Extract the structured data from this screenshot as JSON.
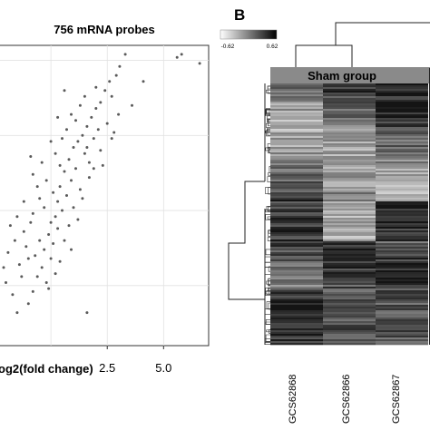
{
  "panel_a": {
    "title": "756 mRNA probes",
    "xlabel": "og2(fold change)",
    "chart_data": {
      "type": "scatter",
      "title": "756 mRNA probes",
      "xlabel": "og2(fold change)",
      "ylabel": "",
      "x_ticks": [
        "2.5",
        "5.0"
      ],
      "xlim": [
        -2.3,
        7.0
      ],
      "ylim": [
        -2.0,
        8.0
      ],
      "grid": true,
      "point_color": "#5a5a5a",
      "points": [
        {
          "x": 5.6,
          "y": 7.6
        },
        {
          "x": 5.8,
          "y": 7.7
        },
        {
          "x": 6.6,
          "y": 7.4
        },
        {
          "x": 3.3,
          "y": 7.7
        },
        {
          "x": 3.05,
          "y": 7.3
        },
        {
          "x": 4.1,
          "y": 6.8
        },
        {
          "x": 2.9,
          "y": 7.0
        },
        {
          "x": 2.6,
          "y": 6.8
        },
        {
          "x": 2.7,
          "y": 6.3
        },
        {
          "x": 2.4,
          "y": 6.5
        },
        {
          "x": 2.2,
          "y": 6.1
        },
        {
          "x": 2.0,
          "y": 5.9
        },
        {
          "x": 1.8,
          "y": 5.6
        },
        {
          "x": 2.1,
          "y": 5.2
        },
        {
          "x": 1.6,
          "y": 5.3
        },
        {
          "x": 1.4,
          "y": 5.0
        },
        {
          "x": 1.2,
          "y": 4.8
        },
        {
          "x": 1.5,
          "y": 4.4
        },
        {
          "x": 1.0,
          "y": 4.6
        },
        {
          "x": 0.8,
          "y": 4.2
        },
        {
          "x": 1.1,
          "y": 3.9
        },
        {
          "x": 0.6,
          "y": 3.8
        },
        {
          "x": 0.9,
          "y": 3.5
        },
        {
          "x": 0.4,
          "y": 3.3
        },
        {
          "x": 0.7,
          "y": 3.0
        },
        {
          "x": 0.3,
          "y": 2.8
        },
        {
          "x": 0.5,
          "y": 2.5
        },
        {
          "x": 0.2,
          "y": 2.3
        },
        {
          "x": 0.0,
          "y": 2.1
        },
        {
          "x": 0.3,
          "y": 1.9
        },
        {
          "x": -0.1,
          "y": 1.7
        },
        {
          "x": 0.1,
          "y": 1.4
        },
        {
          "x": -0.3,
          "y": 1.2
        },
        {
          "x": 0.0,
          "y": 0.9
        },
        {
          "x": -0.4,
          "y": 0.6
        },
        {
          "x": -0.6,
          "y": 0.3
        },
        {
          "x": -0.2,
          "y": 0.1
        },
        {
          "x": -0.8,
          "y": -0.2
        },
        {
          "x": 1.6,
          "y": -0.9
        },
        {
          "x": -1.0,
          "y": -0.6
        },
        {
          "x": -1.5,
          "y": -0.9
        },
        {
          "x": 0.6,
          "y": 6.5
        },
        {
          "x": 1.3,
          "y": 6.0
        },
        {
          "x": 0.9,
          "y": 5.7
        },
        {
          "x": 1.9,
          "y": 4.9
        },
        {
          "x": 2.5,
          "y": 5.4
        },
        {
          "x": 0.5,
          "y": 4.9
        },
        {
          "x": 0.2,
          "y": 4.4
        },
        {
          "x": 1.7,
          "y": 3.6
        },
        {
          "x": 1.3,
          "y": 3.2
        },
        {
          "x": 1.0,
          "y": 2.6
        },
        {
          "x": 0.8,
          "y": 2.0
        },
        {
          "x": 0.6,
          "y": 1.5
        },
        {
          "x": -0.5,
          "y": 2.9
        },
        {
          "x": -0.8,
          "y": 2.4
        },
        {
          "x": -1.2,
          "y": 1.8
        },
        {
          "x": -1.6,
          "y": 1.5
        },
        {
          "x": -1.9,
          "y": 1.1
        },
        {
          "x": -1.0,
          "y": 0.9
        },
        {
          "x": -1.3,
          "y": 0.3
        },
        {
          "x": -2.0,
          "y": 0.1
        },
        {
          "x": -1.7,
          "y": -0.3
        },
        {
          "x": 2.2,
          "y": 4.5
        },
        {
          "x": 3.6,
          "y": 6.0
        },
        {
          "x": 3.0,
          "y": 5.7
        },
        {
          "x": 2.7,
          "y": 4.9
        },
        {
          "x": 1.1,
          "y": 5.5
        },
        {
          "x": 0.7,
          "y": 5.2
        },
        {
          "x": 1.7,
          "y": 4.1
        },
        {
          "x": 0.4,
          "y": 4.0
        },
        {
          "x": -0.2,
          "y": 3.5
        },
        {
          "x": 0.1,
          "y": 3.1
        },
        {
          "x": -0.6,
          "y": 3.3
        },
        {
          "x": -0.3,
          "y": 2.6
        },
        {
          "x": -0.9,
          "y": 2.1
        },
        {
          "x": -0.5,
          "y": 1.5
        },
        {
          "x": -0.7,
          "y": 1.0
        },
        {
          "x": -1.1,
          "y": 1.3
        },
        {
          "x": -1.4,
          "y": 0.7
        },
        {
          "x": 1.4,
          "y": 2.9
        },
        {
          "x": 1.2,
          "y": 2.2
        },
        {
          "x": 0.9,
          "y": 1.2
        },
        {
          "x": 0.4,
          "y": 0.8
        },
        {
          "x": 0.2,
          "y": 0.4
        },
        {
          "x": -0.1,
          "y": -0.1
        },
        {
          "x": 1.9,
          "y": 3.9
        },
        {
          "x": 2.3,
          "y": 4.0
        },
        {
          "x": 1.6,
          "y": 4.6
        },
        {
          "x": 0.3,
          "y": 5.6
        },
        {
          "x": 0.0,
          "y": 4.8
        },
        {
          "x": -0.4,
          "y": 4.1
        },
        {
          "x": -0.8,
          "y": 3.7
        },
        {
          "x": -1.2,
          "y": 2.8
        },
        {
          "x": -1.5,
          "y": 2.3
        },
        {
          "x": -1.8,
          "y": 2.0
        },
        {
          "x": 2.8,
          "y": 5.1
        },
        {
          "x": 2.0,
          "y": 6.6
        },
        {
          "x": 1.5,
          "y": 6.3
        },
        {
          "x": -0.9,
          "y": 4.3
        },
        {
          "x": -2.1,
          "y": 0.6
        }
      ]
    }
  },
  "panel_b": {
    "label": "B",
    "scale_min": "-0.62",
    "scale_max": "0.62",
    "group_label": "Sham group",
    "samples": [
      "GCS62868",
      "GCS62866",
      "GCS62867"
    ],
    "heatmap_colors": {
      "low": "#ffffff",
      "high": "#000000"
    }
  }
}
